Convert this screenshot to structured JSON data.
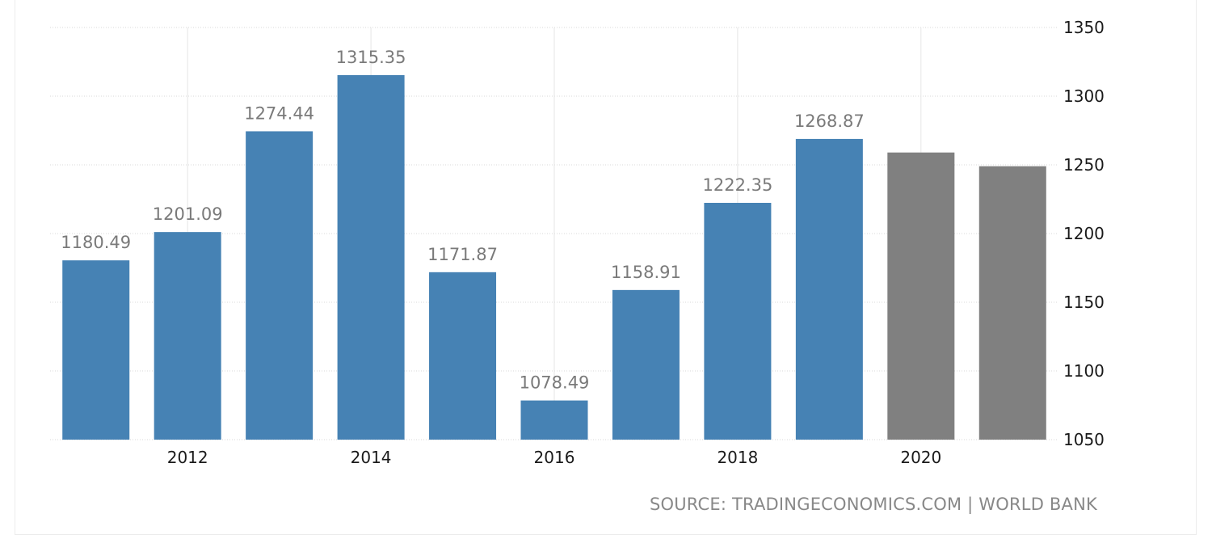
{
  "source_text": "SOURCE: TRADINGECONOMICS.COM | WORLD BANK",
  "colors": {
    "actual": "#4682b4",
    "forecast": "#808080"
  },
  "chart_data": {
    "type": "bar",
    "title": "",
    "xlabel": "",
    "ylabel": "",
    "x_ticks": [
      "2012",
      "2014",
      "2016",
      "2018",
      "2020"
    ],
    "y_ticks": [
      1050,
      1100,
      1150,
      1200,
      1250,
      1300,
      1350
    ],
    "ylim": [
      1050,
      1350
    ],
    "xlim": [
      2010.5,
      2021.5
    ],
    "grid": true,
    "y_axis_side": "right",
    "bars": [
      {
        "x": 2011,
        "value": 1180.49,
        "label": "1180.49",
        "kind": "actual"
      },
      {
        "x": 2012,
        "value": 1201.09,
        "label": "1201.09",
        "kind": "actual"
      },
      {
        "x": 2013,
        "value": 1274.44,
        "label": "1274.44",
        "kind": "actual"
      },
      {
        "x": 2014,
        "value": 1315.35,
        "label": "1315.35",
        "kind": "actual"
      },
      {
        "x": 2015,
        "value": 1171.87,
        "label": "1171.87",
        "kind": "actual"
      },
      {
        "x": 2016,
        "value": 1078.49,
        "label": "1078.49",
        "kind": "actual"
      },
      {
        "x": 2017,
        "value": 1158.91,
        "label": "1158.91",
        "kind": "actual"
      },
      {
        "x": 2018,
        "value": 1222.35,
        "label": "1222.35",
        "kind": "actual"
      },
      {
        "x": 2019,
        "value": 1268.87,
        "label": "1268.87",
        "kind": "actual"
      },
      {
        "x": 2020,
        "value": 1259,
        "label": "",
        "kind": "forecast"
      },
      {
        "x": 2021,
        "value": 1249,
        "label": "",
        "kind": "forecast"
      }
    ]
  }
}
